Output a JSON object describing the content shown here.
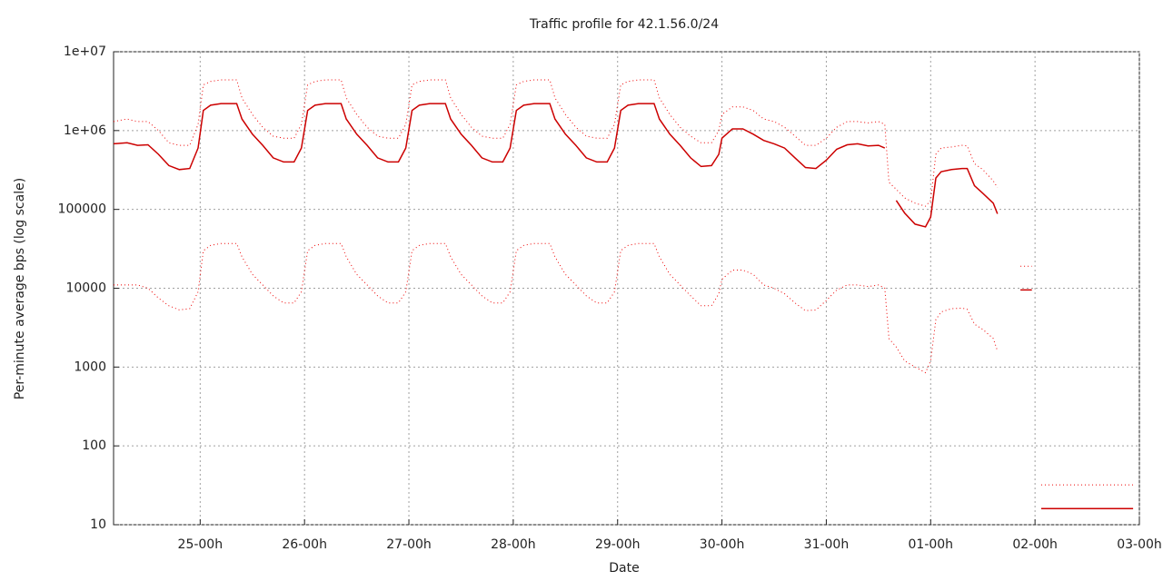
{
  "chart_data": {
    "type": "line",
    "title": "Traffic profile for 42.1.56.0/24",
    "x_label": "Date",
    "y_label": "Per-minute average bps (log scale)",
    "ylog": true,
    "grid": true,
    "xlim": [
      -0.83,
      9
    ],
    "ylim": [
      10,
      10000000
    ],
    "xticks": [
      {
        "value": 0,
        "label": "25-00h"
      },
      {
        "value": 1,
        "label": "26-00h"
      },
      {
        "value": 2,
        "label": "27-00h"
      },
      {
        "value": 3,
        "label": "28-00h"
      },
      {
        "value": 4,
        "label": "29-00h"
      },
      {
        "value": 5,
        "label": "30-00h"
      },
      {
        "value": 6,
        "label": "31-00h"
      },
      {
        "value": 7,
        "label": "01-00h"
      },
      {
        "value": 8,
        "label": "02-00h"
      },
      {
        "value": 9,
        "label": "03-00h"
      }
    ],
    "yticks": [
      {
        "value": 10000000,
        "label": "1e+07"
      },
      {
        "value": 1000000,
        "label": "1e+06"
      },
      100000,
      10000,
      1000,
      100,
      10
    ],
    "x": [
      -0.83,
      -0.7,
      -0.6,
      -0.5,
      -0.4,
      -0.3,
      -0.2,
      -0.1,
      -0.02,
      0.03,
      0.1,
      0.2,
      0.35,
      0.4,
      0.5,
      0.6,
      0.7,
      0.8,
      0.9,
      0.97,
      1.03,
      1.1,
      1.2,
      1.35,
      1.4,
      1.5,
      1.6,
      1.7,
      1.8,
      1.9,
      1.97,
      2.03,
      2.1,
      2.2,
      2.35,
      2.4,
      2.5,
      2.6,
      2.7,
      2.8,
      2.9,
      2.97,
      3.03,
      3.1,
      3.2,
      3.35,
      3.4,
      3.5,
      3.6,
      3.7,
      3.8,
      3.9,
      3.97,
      4.03,
      4.1,
      4.2,
      4.35,
      4.4,
      4.5,
      4.6,
      4.7,
      4.8,
      4.9,
      4.97,
      5.0,
      5.1,
      5.2,
      5.3,
      5.4,
      5.5,
      5.6,
      5.7,
      5.8,
      5.9,
      6.0,
      6.1,
      6.2,
      6.3,
      6.4,
      6.5,
      6.56,
      6.6,
      6.67,
      6.75,
      6.85,
      6.95,
      7.0,
      7.05,
      7.1,
      7.2,
      7.3,
      7.35,
      7.42,
      7.5,
      7.6,
      7.64,
      7.75,
      7.86,
      7.97,
      8.0,
      8.06,
      8.94
    ],
    "series": [
      {
        "color": "#cc0000",
        "dash": false,
        "values": [
          680000,
          700000,
          650000,
          660000,
          500000,
          360000,
          320000,
          330000,
          600000,
          1800000,
          2100000,
          2200000,
          2200000,
          1400000,
          900000,
          650000,
          450000,
          400000,
          400000,
          600000,
          1800000,
          2100000,
          2200000,
          2200000,
          1400000,
          900000,
          650000,
          450000,
          400000,
          400000,
          600000,
          1800000,
          2100000,
          2200000,
          2200000,
          1400000,
          900000,
          650000,
          450000,
          400000,
          400000,
          600000,
          1800000,
          2100000,
          2200000,
          2200000,
          1400000,
          900000,
          650000,
          450000,
          400000,
          400000,
          600000,
          1800000,
          2100000,
          2200000,
          2200000,
          1400000,
          900000,
          650000,
          450000,
          350000,
          360000,
          500000,
          800000,
          1050000,
          1050000,
          900000,
          750000,
          680000,
          600000,
          450000,
          340000,
          330000,
          420000,
          580000,
          660000,
          680000,
          640000,
          650000,
          600000,
          null,
          130000,
          90000,
          65000,
          60000,
          80000,
          250000,
          300000,
          320000,
          330000,
          330000,
          200000,
          160000,
          120000,
          88000,
          null,
          9500,
          9500,
          null,
          16,
          16
        ]
      },
      {
        "color": "#ee0000",
        "dash": true,
        "values": [
          1300000,
          1400000,
          1300000,
          1300000,
          1000000,
          700000,
          650000,
          650000,
          1200000,
          3800000,
          4200000,
          4400000,
          4400000,
          2600000,
          1600000,
          1100000,
          850000,
          800000,
          800000,
          1200000,
          3800000,
          4200000,
          4400000,
          4400000,
          2600000,
          1600000,
          1100000,
          850000,
          800000,
          800000,
          1200000,
          3800000,
          4200000,
          4400000,
          4400000,
          2600000,
          1600000,
          1100000,
          850000,
          800000,
          800000,
          1200000,
          3800000,
          4200000,
          4400000,
          4400000,
          2600000,
          1600000,
          1100000,
          850000,
          800000,
          800000,
          1200000,
          3800000,
          4200000,
          4400000,
          4400000,
          2600000,
          1600000,
          1100000,
          850000,
          700000,
          700000,
          1000000,
          1600000,
          2000000,
          2000000,
          1800000,
          1400000,
          1300000,
          1100000,
          850000,
          650000,
          650000,
          800000,
          1100000,
          1300000,
          1300000,
          1250000,
          1300000,
          1200000,
          220000,
          180000,
          140000,
          120000,
          110000,
          130000,
          500000,
          600000,
          620000,
          650000,
          640000,
          380000,
          320000,
          230000,
          190000,
          null,
          19000,
          19000,
          null,
          32,
          32
        ]
      },
      {
        "color": "#ee0000",
        "dash": true,
        "values": [
          11000,
          11000,
          11000,
          10000,
          7500,
          6000,
          5300,
          5500,
          9000,
          30000,
          35000,
          37000,
          37000,
          25000,
          15000,
          11000,
          8000,
          6500,
          6500,
          9000,
          30000,
          35000,
          37000,
          37000,
          25000,
          15000,
          11000,
          8000,
          6500,
          6500,
          9000,
          30000,
          35000,
          37000,
          37000,
          25000,
          15000,
          11000,
          8000,
          6500,
          6500,
          9000,
          30000,
          35000,
          37000,
          37000,
          25000,
          15000,
          11000,
          8000,
          6500,
          6500,
          9000,
          30000,
          35000,
          37000,
          37000,
          25000,
          15000,
          11000,
          8000,
          6000,
          6000,
          8500,
          13000,
          17000,
          17000,
          15000,
          11000,
          10000,
          8500,
          6500,
          5200,
          5300,
          7000,
          9500,
          11000,
          11000,
          10500,
          11000,
          10000,
          2300,
          1800,
          1200,
          1000,
          850,
          1200,
          4000,
          5000,
          5500,
          5600,
          5400,
          3500,
          3000,
          2300,
          1600,
          null,
          null,
          null,
          null,
          null,
          null
        ]
      }
    ]
  }
}
